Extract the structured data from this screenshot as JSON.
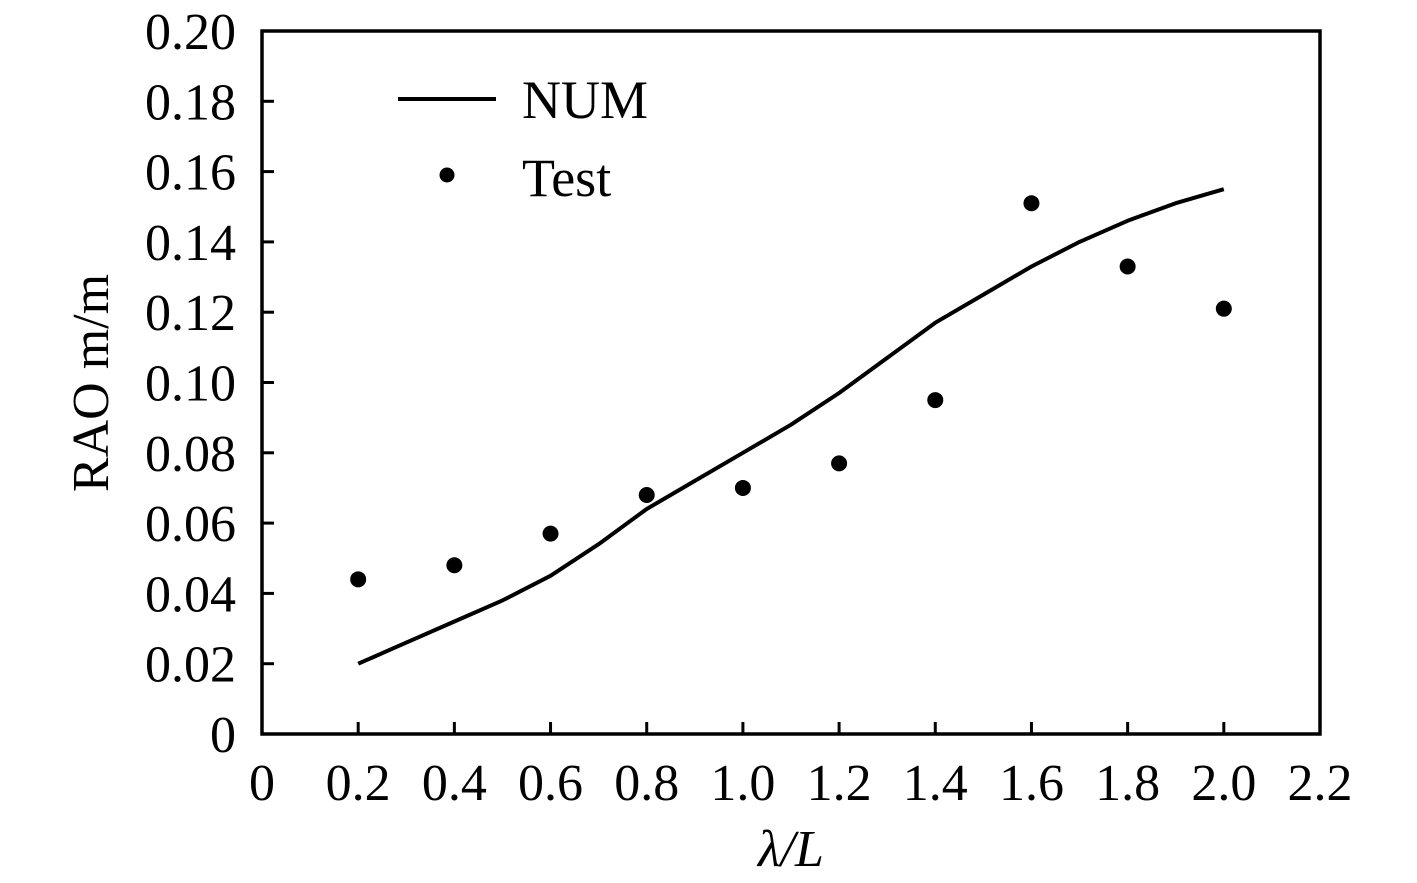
{
  "chart_data": {
    "type": "line",
    "xlabel": "λ/L",
    "ylabel": "RAO m/m",
    "xlim": [
      0,
      2.2
    ],
    "ylim": [
      0,
      0.2
    ],
    "x_ticks": [
      "0",
      "0.2",
      "0.4",
      "0.6",
      "0.8",
      "1.0",
      "1.2",
      "1.4",
      "1.6",
      "1.8",
      "2.0",
      "2.2"
    ],
    "y_ticks": [
      "0",
      "0.02",
      "0.04",
      "0.06",
      "0.08",
      "0.10",
      "0.12",
      "0.14",
      "0.16",
      "0.18",
      "0.20"
    ],
    "grid": false,
    "legend_position": "top-left",
    "series": [
      {
        "name": "NUM",
        "style": "line",
        "color": "#000000",
        "x": [
          0.2,
          0.3,
          0.4,
          0.5,
          0.6,
          0.7,
          0.8,
          0.9,
          1.0,
          1.1,
          1.2,
          1.3,
          1.4,
          1.5,
          1.6,
          1.7,
          1.8,
          1.9,
          2.0
        ],
        "y": [
          0.02,
          0.026,
          0.032,
          0.038,
          0.045,
          0.054,
          0.064,
          0.072,
          0.08,
          0.088,
          0.097,
          0.107,
          0.117,
          0.125,
          0.133,
          0.14,
          0.146,
          0.151,
          0.155
        ]
      },
      {
        "name": "Test",
        "style": "marker",
        "color": "#000000",
        "x": [
          0.2,
          0.4,
          0.6,
          0.8,
          1.0,
          1.2,
          1.4,
          1.6,
          1.8,
          2.0
        ],
        "y": [
          0.044,
          0.048,
          0.057,
          0.068,
          0.07,
          0.077,
          0.095,
          0.151,
          0.133,
          0.121
        ]
      }
    ]
  }
}
